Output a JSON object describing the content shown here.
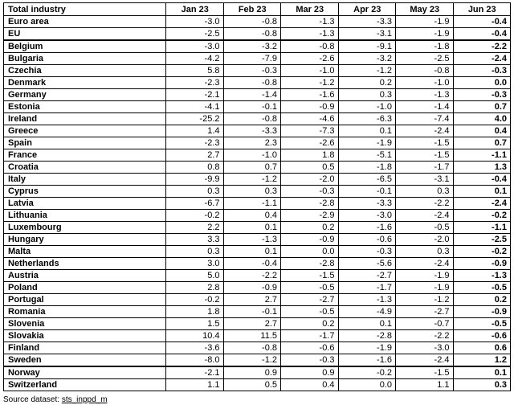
{
  "table": {
    "headers": [
      "Total industry",
      "Jan 23",
      "Feb 23",
      "Mar 23",
      "Apr 23",
      "May 23",
      "Jun 23"
    ],
    "rows": [
      {
        "name": "Euro area",
        "values": [
          "-3.0",
          "-0.8",
          "-1.3",
          "-3.3",
          "-1.9",
          "-0.4"
        ]
      },
      {
        "name": "EU",
        "values": [
          "-2.5",
          "-0.8",
          "-1.3",
          "-3.1",
          "-1.9",
          "-0.4"
        ]
      },
      {
        "name": "Belgium",
        "values": [
          "-3.0",
          "-3.2",
          "-0.8",
          "-9.1",
          "-1.8",
          "-2.2"
        ],
        "gap": true
      },
      {
        "name": "Bulgaria",
        "values": [
          "-4.2",
          "-7.9",
          "-2.6",
          "-3.2",
          "-2.5",
          "-2.4"
        ]
      },
      {
        "name": "Czechia",
        "values": [
          "5.8",
          "-0.3",
          "-1.0",
          "-1.2",
          "-0.8",
          "-0.3"
        ]
      },
      {
        "name": "Denmark",
        "values": [
          "-2.3",
          "-0.8",
          "-1.2",
          "0.2",
          "-1.0",
          "0.0"
        ]
      },
      {
        "name": "Germany",
        "values": [
          "-2.1",
          "-1.4",
          "-1.6",
          "0.3",
          "-1.3",
          "-0.3"
        ]
      },
      {
        "name": "Estonia",
        "values": [
          "-4.1",
          "-0.1",
          "-0.9",
          "-1.0",
          "-1.4",
          "0.7"
        ]
      },
      {
        "name": "Ireland",
        "values": [
          "-25.2",
          "-0.8",
          "-4.6",
          "-6.3",
          "-7.4",
          "4.0"
        ]
      },
      {
        "name": "Greece",
        "values": [
          "1.4",
          "-3.3",
          "-7.3",
          "0.1",
          "-2.4",
          "0.4"
        ]
      },
      {
        "name": "Spain",
        "values": [
          "-2.3",
          "2.3",
          "-2.6",
          "-1.9",
          "-1.5",
          "0.7"
        ]
      },
      {
        "name": "France",
        "values": [
          "2.7",
          "-1.0",
          "1.8",
          "-5.1",
          "-1.5",
          "-1.1"
        ]
      },
      {
        "name": "Croatia",
        "values": [
          "0.8",
          "0.7",
          "0.5",
          "-1.8",
          "-1.7",
          "1.3"
        ]
      },
      {
        "name": "Italy",
        "values": [
          "-9.9",
          "-1.2",
          "-2.0",
          "-6.5",
          "-3.1",
          "-0.4"
        ]
      },
      {
        "name": "Cyprus",
        "values": [
          "0.3",
          "0.3",
          "-0.3",
          "-0.1",
          "0.3",
          "0.1"
        ]
      },
      {
        "name": "Latvia",
        "values": [
          "-6.7",
          "-1.1",
          "-2.8",
          "-3.3",
          "-2.2",
          "-2.4"
        ]
      },
      {
        "name": "Lithuania",
        "values": [
          "-0.2",
          "0.4",
          "-2.9",
          "-3.0",
          "-2.4",
          "-0.2"
        ]
      },
      {
        "name": "Luxembourg",
        "values": [
          "2.2",
          "0.1",
          "0.2",
          "-1.6",
          "-0.5",
          "-1.1"
        ]
      },
      {
        "name": "Hungary",
        "values": [
          "3.3",
          "-1.3",
          "-0.9",
          "-0.6",
          "-2.0",
          "-2.5"
        ]
      },
      {
        "name": "Malta",
        "values": [
          "0.3",
          "0.1",
          "0.0",
          "-0.3",
          "0.3",
          "-0.2"
        ]
      },
      {
        "name": "Netherlands",
        "values": [
          "3.0",
          "-0.4",
          "-2.8",
          "-5.6",
          "-2.4",
          "-0.9"
        ]
      },
      {
        "name": "Austria",
        "values": [
          "5.0",
          "-2.2",
          "-1.5",
          "-2.7",
          "-1.9",
          "-1.3"
        ]
      },
      {
        "name": "Poland",
        "values": [
          "2.8",
          "-0.9",
          "-0.5",
          "-1.7",
          "-1.9",
          "-0.5"
        ]
      },
      {
        "name": "Portugal",
        "values": [
          "-0.2",
          "2.7",
          "-2.7",
          "-1.3",
          "-1.2",
          "0.2"
        ]
      },
      {
        "name": "Romania",
        "values": [
          "1.8",
          "-0.1",
          "-0.5",
          "-4.9",
          "-2.7",
          "-0.9"
        ]
      },
      {
        "name": "Slovenia",
        "values": [
          "1.5",
          "2.7",
          "0.2",
          "0.1",
          "-0.7",
          "-0.5"
        ]
      },
      {
        "name": "Slovakia",
        "values": [
          "10.4",
          "11.5",
          "-1.7",
          "-2.8",
          "-2.2",
          "-0.6"
        ]
      },
      {
        "name": "Finland",
        "values": [
          "-3.6",
          "-0.8",
          "-0.6",
          "-1.9",
          "-3.0",
          "0.6"
        ]
      },
      {
        "name": "Sweden",
        "values": [
          "-8.0",
          "-1.2",
          "-0.3",
          "-1.6",
          "-2.4",
          "1.2"
        ]
      },
      {
        "name": "Norway",
        "values": [
          "-2.1",
          "0.9",
          "0.9",
          "-0.2",
          "-1.5",
          "0.1"
        ],
        "gap": true
      },
      {
        "name": "Switzerland",
        "values": [
          "1.1",
          "0.5",
          "0.4",
          "0.0",
          "1.1",
          "0.3"
        ]
      }
    ]
  },
  "source": {
    "label": "Source dataset: ",
    "dataset": "sts_inppd_m"
  }
}
